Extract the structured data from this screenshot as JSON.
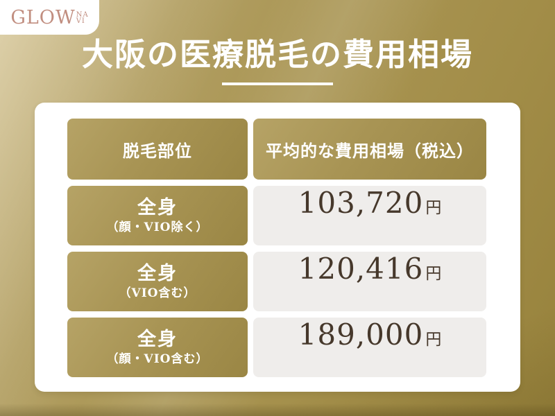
{
  "brand": {
    "name_main": "GLOW",
    "name_sub_top": "NA",
    "name_sub_bottom": "VI"
  },
  "header": {
    "title": "大阪の医療脱毛の費用相場"
  },
  "table": {
    "columns": [
      "脱毛部位",
      "平均的な費用相場（税込）"
    ],
    "rows": [
      {
        "part": "全身",
        "note": "（顔・VIO除く）",
        "price": "103,720",
        "unit": "円"
      },
      {
        "part": "全身",
        "note": "（VIO含む）",
        "price": "120,416",
        "unit": "円"
      },
      {
        "part": "全身",
        "note": "（顔・VIO含む）",
        "price": "189,000",
        "unit": "円"
      }
    ]
  },
  "colors": {
    "background_gold": "#a28d48",
    "cell_gold": "#a89454",
    "cell_gray": "#efedeb",
    "logo_rose": "#c18e80",
    "price_brown": "#46382b",
    "white": "#ffffff"
  },
  "chart_data": {
    "type": "table",
    "title": "大阪の医療脱毛の費用相場",
    "columns": [
      "脱毛部位",
      "平均的な費用相場（税込）"
    ],
    "rows": [
      [
        "全身（顔・VIO除く）",
        "103,720円"
      ],
      [
        "全身（VIO含む）",
        "120,416円"
      ],
      [
        "全身（顔・VIO含む）",
        "189,000円"
      ]
    ],
    "values_yen": [
      103720,
      120416,
      189000
    ]
  }
}
